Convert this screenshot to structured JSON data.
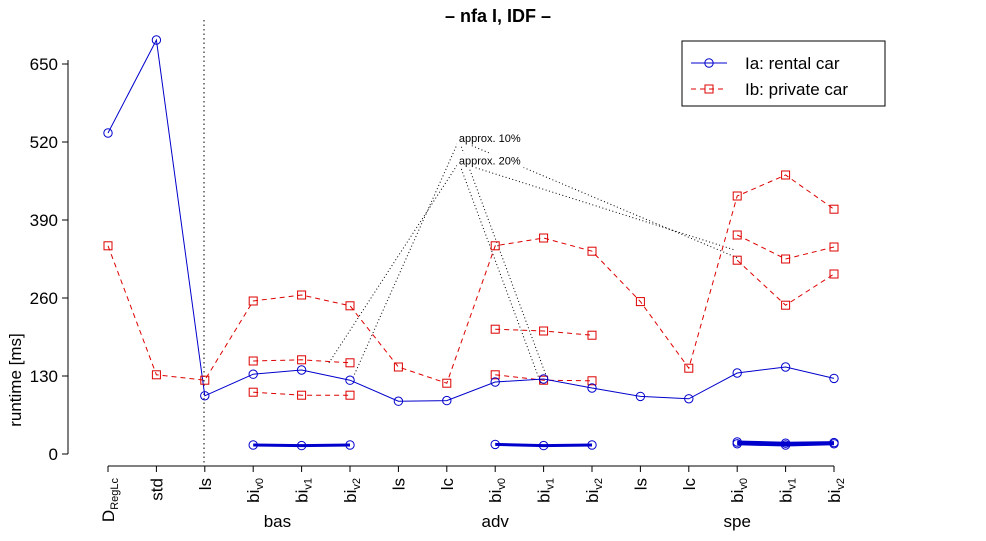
{
  "chart_data": {
    "type": "line",
    "title": "– nfa I, IDF –",
    "ylabel": "runtime [ms]",
    "xlabel": "",
    "ylim": [
      0,
      700
    ],
    "yticks": [
      0,
      130,
      260,
      390,
      520,
      650
    ],
    "grid": false,
    "legend_position": "top-right",
    "categories": [
      {
        "base": "D",
        "sub": "RegLc"
      },
      {
        "base": "std",
        "sub": ""
      },
      {
        "base": "ls",
        "sub": ""
      },
      {
        "base": "bi",
        "sub": "v0"
      },
      {
        "base": "bi",
        "sub": "v1"
      },
      {
        "base": "bi",
        "sub": "v2"
      },
      {
        "base": "ls",
        "sub": ""
      },
      {
        "base": "lc",
        "sub": ""
      },
      {
        "base": "bi",
        "sub": "v0"
      },
      {
        "base": "bi",
        "sub": "v1"
      },
      {
        "base": "bi",
        "sub": "v2"
      },
      {
        "base": "ls",
        "sub": ""
      },
      {
        "base": "lc",
        "sub": ""
      },
      {
        "base": "bi",
        "sub": "v0"
      },
      {
        "base": "bi",
        "sub": "v1"
      },
      {
        "base": "bi",
        "sub": "v2"
      }
    ],
    "groups": [
      {
        "label": "bas",
        "from": 2,
        "to": 5
      },
      {
        "label": "adv",
        "from": 6,
        "to": 10
      },
      {
        "label": "spe",
        "from": 11,
        "to": 15
      }
    ],
    "series": [
      {
        "name": "Ia: rental car",
        "color": "#0000cc",
        "style": "solid",
        "marker": "circle",
        "x": [
          0,
          1,
          2,
          3,
          4,
          5,
          6,
          7,
          8,
          9,
          10,
          11,
          12,
          13,
          14,
          15
        ],
        "values": [
          535,
          690,
          97,
          133,
          140,
          123,
          88,
          89,
          120,
          125,
          110,
          96,
          92,
          135,
          145,
          126
        ]
      },
      {
        "name": "Ib: private car",
        "color": "#dd0000",
        "style": "dashed",
        "marker": "square",
        "x": [
          0,
          1,
          2,
          3,
          4,
          5,
          6,
          7,
          8,
          9,
          10,
          11,
          12,
          13,
          14,
          15
        ],
        "values": [
          347,
          132,
          123,
          255,
          265,
          247,
          145,
          118,
          347,
          360,
          338,
          254,
          143,
          430,
          465,
          408
        ]
      }
    ],
    "extra_lines": [
      {
        "series": 0,
        "x": [
          3,
          4,
          5
        ],
        "values": [
          15,
          14,
          15
        ],
        "bold": true
      },
      {
        "series": 0,
        "x": [
          8,
          9,
          10
        ],
        "values": [
          16,
          14,
          15
        ],
        "bold": true
      },
      {
        "series": 0,
        "x": [
          13,
          14,
          15
        ],
        "values": [
          20,
          18,
          19
        ],
        "bold": true
      },
      {
        "series": 0,
        "x": [
          13,
          14,
          15
        ],
        "values": [
          17,
          15,
          17
        ],
        "bold": true
      },
      {
        "series": 1,
        "x": [
          3,
          4,
          5
        ],
        "values": [
          155,
          157,
          152
        ]
      },
      {
        "series": 1,
        "x": [
          3,
          4,
          5
        ],
        "values": [
          103,
          98,
          98
        ]
      },
      {
        "series": 1,
        "x": [
          8,
          9,
          10
        ],
        "values": [
          208,
          205,
          198
        ]
      },
      {
        "series": 1,
        "x": [
          8,
          9,
          10
        ],
        "values": [
          132,
          123,
          122
        ]
      },
      {
        "series": 1,
        "x": [
          13,
          14,
          15
        ],
        "values": [
          365,
          325,
          345
        ]
      },
      {
        "series": 1,
        "x": [
          13,
          14,
          15
        ],
        "values": [
          323,
          248,
          300
        ]
      }
    ],
    "annotations": [
      {
        "text": "approx. 10%",
        "x": 7.25,
        "y": 523,
        "targets": [
          [
            5.05,
            125
          ],
          [
            9.05,
            131
          ],
          [
            13.0,
            327
          ]
        ]
      },
      {
        "text": "approx. 20%",
        "x": 7.25,
        "y": 486,
        "targets": [
          [
            4.55,
            150
          ],
          [
            8.95,
            116
          ],
          [
            12.95,
            340
          ]
        ]
      }
    ]
  }
}
